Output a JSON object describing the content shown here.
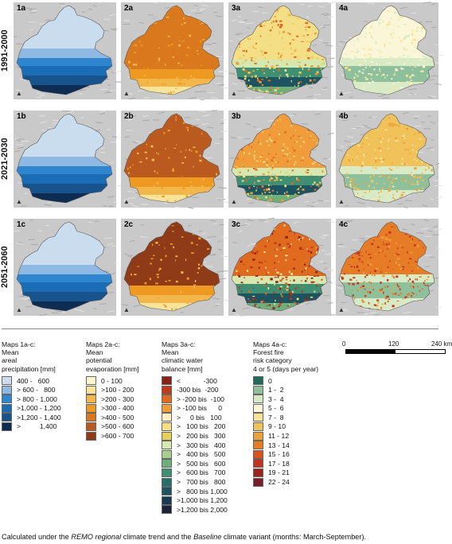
{
  "rows": [
    {
      "period": "1991-2000",
      "panels": [
        "1a",
        "2a",
        "3a",
        "4a"
      ]
    },
    {
      "period": "2021-2030",
      "panels": [
        "1b",
        "2b",
        "3b",
        "4b"
      ]
    },
    {
      "period": "2051-2060",
      "panels": [
        "1c",
        "2c",
        "3c",
        "4c"
      ]
    }
  ],
  "legends": [
    {
      "title": [
        "Maps 1a-c:",
        "Mean",
        "areal",
        "precipitation [mm]"
      ],
      "entries": [
        {
          "label": "400 -   600",
          "color": "#c9ddef"
        },
        {
          "label": "> 600 -   800",
          "color": "#8fb9e3"
        },
        {
          "label": "> 800 - 1,000",
          "color": "#2f86cf"
        },
        {
          "label": ">1,000 - 1,200",
          "color": "#1a6db4"
        },
        {
          "label": ">1,200 - 1,400",
          "color": "#17538c"
        },
        {
          "label": ">          1,400",
          "color": "#0f2d52"
        }
      ]
    },
    {
      "title": [
        "Maps 2a-c:",
        "Mean",
        "potential",
        "evaporation [mm]"
      ],
      "entries": [
        {
          "label": "0 - 100",
          "color": "#fbf4cd"
        },
        {
          "label": ">100 - 200",
          "color": "#f6e49a"
        },
        {
          "label": ">200 - 300",
          "color": "#f3b64b"
        },
        {
          "label": ">300 - 400",
          "color": "#ee9a22"
        },
        {
          "label": ">400 - 500",
          "color": "#d9781c"
        },
        {
          "label": ">500 - 600",
          "color": "#bb5a1f"
        },
        {
          "label": ">600 - 700",
          "color": "#8f3b18"
        }
      ]
    },
    {
      "title": [
        "Maps 3a-c:",
        "Mean",
        "climatic water",
        "balance [mm]"
      ],
      "entries": [
        {
          "label": "<            -300",
          "color": "#8a2314"
        },
        {
          "label": "-300 bis  -200",
          "color": "#c1381a"
        },
        {
          "label": "> -200 bis  -100",
          "color": "#e06a1e"
        },
        {
          "label": "> -100 bis      0",
          "color": "#f19c3a"
        },
        {
          "label": ">     0 bis   100",
          "color": "#fbf0c2"
        },
        {
          "label": ">   100 bis   200",
          "color": "#f4df87"
        },
        {
          "label": ">   200 bis   300",
          "color": "#e6d05b"
        },
        {
          "label": ">   300 bis   400",
          "color": "#d6e7b0"
        },
        {
          "label": ">   400 bis   500",
          "color": "#a8d08c"
        },
        {
          "label": ">   500 bis   600",
          "color": "#6fb07a"
        },
        {
          "label": ">   600 bis   700",
          "color": "#3f8f73"
        },
        {
          "label": ">   700 bis   800",
          "color": "#256f6a"
        },
        {
          "label": ">   800 bis 1,000",
          "color": "#1c5561"
        },
        {
          "label": ">1,000 bis 1,200",
          "color": "#193b52"
        },
        {
          "label": ">1,200 bis 2,000",
          "color": "#1a2337"
        }
      ]
    },
    {
      "title": [
        "Maps 4a-c:",
        "Forest fire",
        "risk category",
        "4 or 5 (days per year)"
      ],
      "entries": [
        {
          "label": "0",
          "color": "#1d6b5a"
        },
        {
          "label": "1 -  2",
          "color": "#8fc09c"
        },
        {
          "label": "3 -  4",
          "color": "#d8ebc6"
        },
        {
          "label": "5 -  6",
          "color": "#fbf6d8"
        },
        {
          "label": "7 -  8",
          "color": "#f6e499"
        },
        {
          "label": "9 - 10",
          "color": "#f1c25a"
        },
        {
          "label": "11 - 12",
          "color": "#eca23a"
        },
        {
          "label": "13 - 14",
          "color": "#e67d26"
        },
        {
          "label": "15 - 16",
          "color": "#d9531f"
        },
        {
          "label": "17 - 18",
          "color": "#c4321d"
        },
        {
          "label": "19 - 21",
          "color": "#9e221c"
        },
        {
          "label": "22 - 24",
          "color": "#7a1c2a"
        }
      ]
    }
  ],
  "scale": {
    "ticks": [
      "0",
      "120",
      "240 km"
    ]
  },
  "caption": {
    "pre": "Calculated under the ",
    "em1": "REMO regional",
    "mid": " climate trend and the ",
    "em2": "Baseline",
    "post": " climate variant (months: March-September)."
  }
}
